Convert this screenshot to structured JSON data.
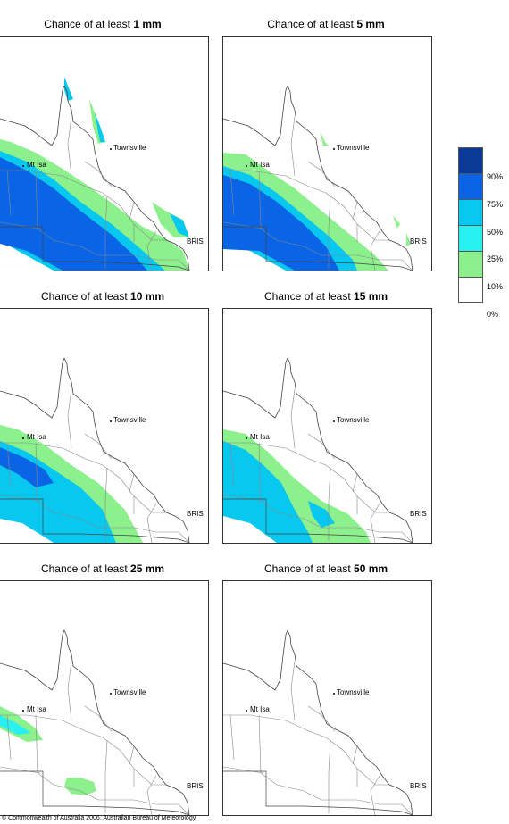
{
  "panels": [
    {
      "title_prefix": "Chance of at least ",
      "title_bold": "1 mm"
    },
    {
      "title_prefix": "Chance of at least ",
      "title_bold": "5 mm"
    },
    {
      "title_prefix": "Chance of at least ",
      "title_bold": "10 mm"
    },
    {
      "title_prefix": "Chance of at least ",
      "title_bold": "15 mm"
    },
    {
      "title_prefix": "Chance of at least ",
      "title_bold": "25 mm"
    },
    {
      "title_prefix": "Chance of at least ",
      "title_bold": "50 mm"
    }
  ],
  "place_labels": {
    "townsville": "Townsville",
    "mt_isa": "Mt Isa",
    "bris": "BRIS"
  },
  "legend": {
    "colors": [
      "#0a3a96",
      "#0a64e6",
      "#08c8f0",
      "#28f0f0",
      "#8cf08c",
      "#ffffff"
    ],
    "labels": [
      "90%",
      "75%",
      "50%",
      "25%",
      "10%",
      "0%"
    ]
  },
  "footer": "© Commonwealth of Australia 2006, Australian Bureau of Meteorology"
}
